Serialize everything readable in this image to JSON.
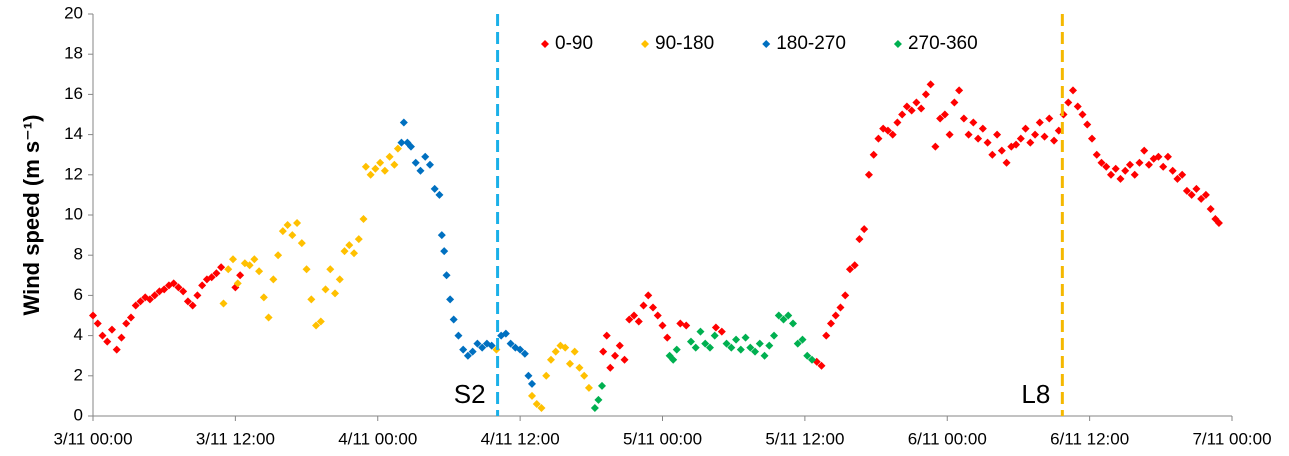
{
  "chart_data": {
    "type": "scatter",
    "y_label": "Wind speed (m s⁻¹)",
    "xlim": [
      0,
      96
    ],
    "ylim": [
      0,
      20
    ],
    "xticks": [
      {
        "value": 0,
        "label": "3/11 00:00"
      },
      {
        "value": 12,
        "label": "3/11 12:00"
      },
      {
        "value": 24,
        "label": "4/11 00:00"
      },
      {
        "value": 36,
        "label": "4/11 12:00"
      },
      {
        "value": 48,
        "label": "5/11 00:00"
      },
      {
        "value": 60,
        "label": "5/11 12:00"
      },
      {
        "value": 72,
        "label": "6/11 00:00"
      },
      {
        "value": 84,
        "label": "6/11 12:00"
      },
      {
        "value": 96,
        "label": "7/11 00:00"
      }
    ],
    "yticks": [
      0,
      2,
      4,
      6,
      8,
      10,
      12,
      14,
      16,
      18,
      20
    ],
    "legend": "top",
    "series": [
      {
        "name": "0-90",
        "color": "#ff0000",
        "x": [
          0,
          0.4,
          0.8,
          1.2,
          1.6,
          2.0,
          2.4,
          2.8,
          3.2,
          3.6,
          4.0,
          4.4,
          4.8,
          5.2,
          5.6,
          6.0,
          6.4,
          6.8,
          7.2,
          7.6,
          8.0,
          8.4,
          8.8,
          9.2,
          9.6,
          10.0,
          10.4,
          10.8,
          12.0,
          12.4,
          43.0,
          43.3,
          43.6,
          44.0,
          44.4,
          44.8,
          45.2,
          45.6,
          46.0,
          46.4,
          46.8,
          47.2,
          47.6,
          48.0,
          48.4,
          49.5,
          50.0,
          52.5,
          53.0,
          61.0,
          61.4,
          61.8,
          62.2,
          62.6,
          63.0,
          63.4,
          63.8,
          64.2,
          64.6,
          65.0,
          65.4,
          65.8,
          66.2,
          66.6,
          67.0,
          67.4,
          67.8,
          68.2,
          68.6,
          69.0,
          69.4,
          69.8,
          70.2,
          70.6,
          71.0,
          71.4,
          71.8,
          72.2,
          72.6,
          73.0,
          73.4,
          73.8,
          74.2,
          74.6,
          75.0,
          75.4,
          75.8,
          76.2,
          76.6,
          77.0,
          77.4,
          77.8,
          78.2,
          78.6,
          79.0,
          79.4,
          79.8,
          80.2,
          80.6,
          81.0,
          81.4,
          81.8,
          82.2,
          82.6,
          83.0,
          83.4,
          83.8,
          84.2,
          84.6,
          85.0,
          85.4,
          85.8,
          86.2,
          86.6,
          87.0,
          87.4,
          87.8,
          88.2,
          88.6,
          89.0,
          89.4,
          89.8,
          90.2,
          90.6,
          91.0,
          91.4,
          91.8,
          92.2,
          92.6,
          93.0,
          93.4,
          93.8,
          94.2,
          94.6,
          94.9
        ],
        "values": [
          5.0,
          4.6,
          4.0,
          3.7,
          4.3,
          3.3,
          3.9,
          4.6,
          4.9,
          5.5,
          5.7,
          5.9,
          5.8,
          6.0,
          6.2,
          6.3,
          6.5,
          6.6,
          6.4,
          6.2,
          5.7,
          5.5,
          6.0,
          6.5,
          6.8,
          6.9,
          7.1,
          7.4,
          6.4,
          7.0,
          3.2,
          4.0,
          2.4,
          3.0,
          3.5,
          2.8,
          4.8,
          5.0,
          4.7,
          5.5,
          6.0,
          5.4,
          5.0,
          4.5,
          3.9,
          4.6,
          4.5,
          4.4,
          4.2,
          2.7,
          2.5,
          4.0,
          4.6,
          5.0,
          5.4,
          6.0,
          7.3,
          7.5,
          8.8,
          9.3,
          12.0,
          13.0,
          13.8,
          14.3,
          14.2,
          14.0,
          14.6,
          15.0,
          15.4,
          15.2,
          15.6,
          15.3,
          16.0,
          16.5,
          13.4,
          14.8,
          15.0,
          14.0,
          15.6,
          16.2,
          14.8,
          14.0,
          14.6,
          13.8,
          14.3,
          13.6,
          13.0,
          14.0,
          13.2,
          12.6,
          13.4,
          13.5,
          13.8,
          14.3,
          13.6,
          14.0,
          14.6,
          13.9,
          14.8,
          13.7,
          14.2,
          15.0,
          15.6,
          16.2,
          15.4,
          15.0,
          14.5,
          13.8,
          13.0,
          12.6,
          12.4,
          12.0,
          12.3,
          11.8,
          12.2,
          12.5,
          12.0,
          12.6,
          13.2,
          12.5,
          12.8,
          12.9,
          12.4,
          12.9,
          12.2,
          11.8,
          12.0,
          11.2,
          11.0,
          11.3,
          10.8,
          11.0,
          10.3,
          9.8,
          9.6
        ]
      },
      {
        "name": "90-180",
        "color": "#ffc000",
        "x": [
          11.0,
          11.4,
          11.8,
          12.2,
          12.8,
          13.2,
          13.6,
          14.0,
          14.4,
          14.8,
          15.2,
          15.6,
          16.0,
          16.4,
          16.8,
          17.2,
          17.6,
          18.0,
          18.4,
          18.8,
          19.2,
          19.6,
          20.0,
          20.4,
          20.8,
          21.2,
          21.6,
          22.0,
          22.4,
          22.8,
          23.0,
          23.4,
          23.8,
          24.2,
          24.6,
          25.0,
          25.4,
          25.7,
          34.0,
          37.0,
          37.4,
          37.8,
          38.2,
          38.6,
          39.0,
          39.4,
          39.8,
          40.2,
          40.6,
          41.0,
          41.4,
          41.8
        ],
        "values": [
          5.6,
          7.3,
          7.8,
          6.6,
          7.6,
          7.5,
          7.8,
          7.2,
          5.9,
          4.9,
          6.8,
          8.0,
          9.2,
          9.5,
          9.0,
          9.6,
          8.6,
          7.3,
          5.8,
          4.5,
          4.7,
          6.3,
          7.3,
          6.1,
          6.8,
          8.2,
          8.5,
          8.1,
          8.8,
          9.8,
          12.4,
          12.0,
          12.3,
          12.6,
          12.2,
          12.9,
          12.5,
          13.3,
          3.3,
          1.0,
          0.6,
          0.4,
          2.0,
          2.8,
          3.2,
          3.5,
          3.4,
          2.6,
          3.2,
          2.4,
          2.0,
          1.4
        ]
      },
      {
        "name": "180-270",
        "color": "#0070c0",
        "x": [
          26.0,
          26.2,
          26.5,
          26.8,
          27.2,
          27.6,
          28.0,
          28.4,
          28.8,
          29.2,
          29.4,
          29.6,
          29.8,
          30.1,
          30.4,
          30.8,
          31.2,
          31.6,
          32.0,
          32.4,
          32.8,
          33.2,
          33.6,
          34.4,
          34.8,
          35.2,
          35.6,
          36.0,
          36.4,
          36.7,
          37.0
        ],
        "values": [
          13.6,
          14.6,
          13.6,
          13.4,
          12.6,
          12.2,
          12.9,
          12.5,
          11.3,
          11.0,
          9.0,
          8.2,
          7.0,
          5.8,
          4.8,
          4.0,
          3.3,
          3.0,
          3.2,
          3.6,
          3.4,
          3.6,
          3.5,
          4.0,
          4.1,
          3.6,
          3.4,
          3.3,
          3.1,
          2.0,
          1.6
        ]
      },
      {
        "name": "270-360",
        "color": "#00b050",
        "x": [
          42.3,
          42.6,
          42.9,
          48.6,
          48.9,
          49.2,
          50.4,
          50.8,
          51.2,
          51.6,
          52.0,
          52.4,
          53.4,
          53.8,
          54.2,
          54.6,
          55.0,
          55.4,
          55.8,
          56.2,
          56.6,
          57.0,
          57.4,
          57.8,
          58.2,
          58.6,
          59.0,
          59.4,
          59.8,
          60.2,
          60.6
        ],
        "values": [
          0.4,
          0.8,
          1.5,
          3.0,
          2.8,
          3.3,
          3.7,
          3.4,
          4.2,
          3.6,
          3.4,
          4.0,
          3.6,
          3.4,
          3.8,
          3.3,
          3.9,
          3.4,
          3.2,
          3.6,
          3.0,
          3.5,
          4.0,
          5.0,
          4.8,
          5.0,
          4.6,
          3.6,
          3.8,
          3.0,
          2.8
        ]
      }
    ],
    "markers": [
      {
        "label": "S2",
        "x": 34.1,
        "color": "#1ab0e8"
      },
      {
        "label": "L8",
        "x": 81.7,
        "color": "#f5b800"
      }
    ]
  }
}
